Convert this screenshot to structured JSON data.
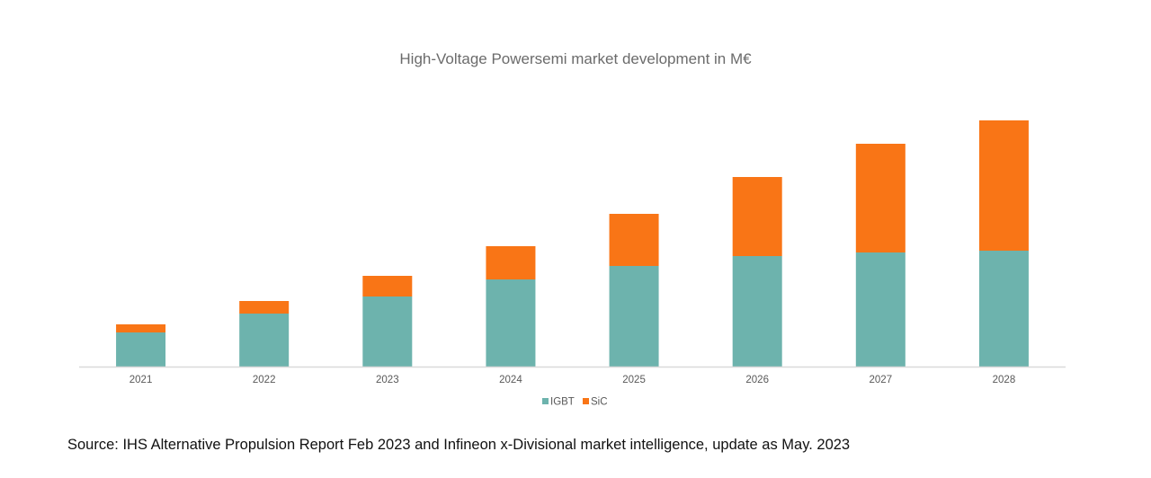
{
  "chart_data": {
    "type": "bar",
    "stacked": true,
    "title": "High-Voltage Powersemi market development in M€",
    "xlabel": "",
    "ylabel": "",
    "categories": [
      "2021",
      "2022",
      "2023",
      "2024",
      "2025",
      "2026",
      "2027",
      "2028"
    ],
    "series": [
      {
        "name": "IGBT",
        "color": "#6db3ad",
        "values": [
          38,
          59,
          78,
          97,
          112,
          123,
          127,
          129
        ]
      },
      {
        "name": "SiC",
        "color": "#f97516",
        "values": [
          9,
          14,
          23,
          37,
          58,
          88,
          121,
          145
        ]
      }
    ],
    "ylim": [
      0,
      300
    ],
    "y_axis_labels_shown": false,
    "grid": false,
    "legend": "bottom-center"
  },
  "source": "Source: IHS Alternative Propulsion Report Feb 2023 and Infineon x-Divisional market intelligence, update as May. 2023"
}
